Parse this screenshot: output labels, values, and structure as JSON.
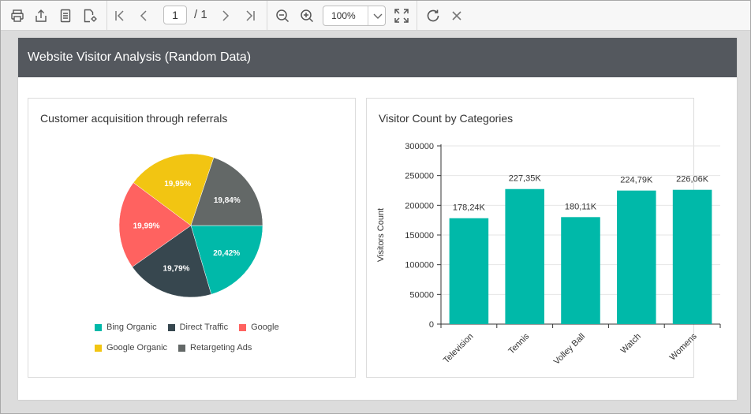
{
  "toolbar": {
    "page_current": "1",
    "page_total": "/ 1",
    "zoom_value": "100%"
  },
  "report": {
    "title": "Website Visitor Analysis (Random Data)"
  },
  "colors": {
    "teal": "#00B9A9",
    "dark": "#37474F",
    "red": "#FF6260",
    "yellow": "#F2C512",
    "gray": "#636867"
  },
  "chart_data": [
    {
      "type": "pie",
      "title": "Customer acquisition through referrals",
      "labels": [
        "Bing Organic",
        "Direct Traffic",
        "Google",
        "Google Organic",
        "Retargeting Ads"
      ],
      "values": [
        20.42,
        19.79,
        19.99,
        19.95,
        19.84
      ],
      "value_labels": [
        "20,42%",
        "19,79%",
        "19,99%",
        "19,95%",
        "19,84%"
      ],
      "colors": [
        "#00B9A9",
        "#37474F",
        "#FF6260",
        "#F2C512",
        "#636867"
      ],
      "legend": "bottom"
    },
    {
      "type": "bar",
      "title": "Visitor Count by Categories",
      "ylabel": "Visitors Count",
      "xlabel": "",
      "categories": [
        "Television",
        "Tennis",
        "Volley Ball",
        "Watch",
        "Womens"
      ],
      "values": [
        178240,
        227350,
        180110,
        224790,
        226060
      ],
      "value_labels": [
        "178,24K",
        "227,35K",
        "180,11K",
        "224,79K",
        "226,06K"
      ],
      "ylim": [
        0,
        300000
      ],
      "yticks": [
        0,
        50000,
        100000,
        150000,
        200000,
        250000,
        300000
      ],
      "color": "#00B9A9",
      "grid": true
    }
  ]
}
